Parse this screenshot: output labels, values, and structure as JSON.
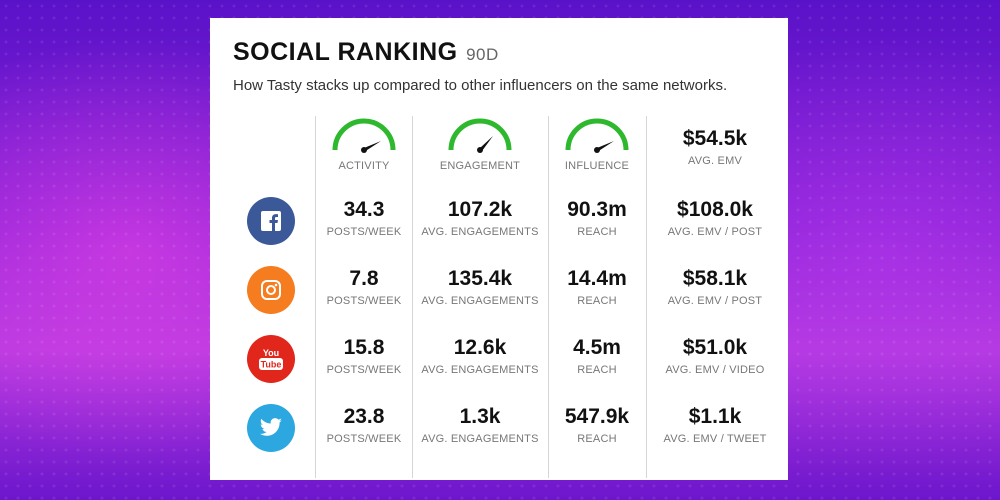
{
  "header": {
    "title": "SOCIAL RANKING",
    "period": "90D",
    "subtitle": "How Tasty stacks up compared to other influencers on the same networks."
  },
  "gauges": [
    {
      "label": "ACTIVITY"
    },
    {
      "label": "ENGAGEMENT"
    },
    {
      "label": "INFLUENCE"
    }
  ],
  "avg_emv": {
    "value": "$54.5k",
    "label": "AVG. EMV"
  },
  "rows": [
    {
      "network": "facebook",
      "icon": "facebook-icon",
      "color": "#3b5998",
      "posts": "34.3",
      "posts_label": "POSTS/WEEK",
      "engagements": "107.2k",
      "engagements_label": "AVG. ENGAGEMENTS",
      "reach": "90.3m",
      "reach_label": "REACH",
      "emv": "$108.0k",
      "emv_label": "AVG. EMV / POST"
    },
    {
      "network": "instagram",
      "icon": "instagram-icon",
      "color": "#f57c1f",
      "posts": "7.8",
      "posts_label": "POSTS/WEEK",
      "engagements": "135.4k",
      "engagements_label": "AVG. ENGAGEMENTS",
      "reach": "14.4m",
      "reach_label": "REACH",
      "emv": "$58.1k",
      "emv_label": "AVG. EMV / POST"
    },
    {
      "network": "youtube",
      "icon": "youtube-icon",
      "color": "#e1261c",
      "posts": "15.8",
      "posts_label": "POSTS/WEEK",
      "engagements": "12.6k",
      "engagements_label": "AVG. ENGAGEMENTS",
      "reach": "4.5m",
      "reach_label": "REACH",
      "emv": "$51.0k",
      "emv_label": "AVG. EMV / VIDEO"
    },
    {
      "network": "twitter",
      "icon": "twitter-icon",
      "color": "#2ca7e0",
      "posts": "23.8",
      "posts_label": "POSTS/WEEK",
      "engagements": "1.3k",
      "engagements_label": "AVG. ENGAGEMENTS",
      "reach": "547.9k",
      "reach_label": "REACH",
      "emv": "$1.1k",
      "emv_label": "AVG. EMV / TWEET"
    }
  ],
  "colors": {
    "gauge": "#2eb82e",
    "needle": "#111111"
  }
}
